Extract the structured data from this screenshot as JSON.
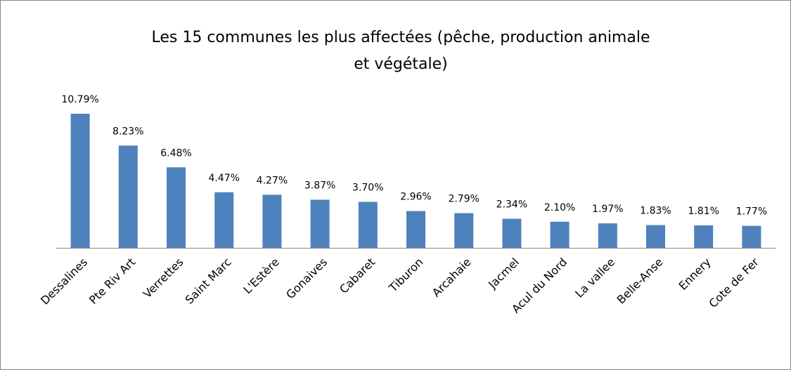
{
  "chart_data": {
    "type": "bar",
    "title": [
      "Les 15 communes les plus affectées (pêche, production  animale",
      "et végétale)"
    ],
    "categories": [
      "Dessalines",
      "Pte Riv Art",
      "Verrettes",
      "Saint Marc",
      "L'Estère",
      "Gonaives",
      "Cabaret",
      "Tiburon",
      "Arcahaie",
      "Jacmel",
      "Acul du Nord",
      "La vallee",
      "Belle-Anse",
      "Ennery",
      "Cote de Fer"
    ],
    "values": [
      10.79,
      8.23,
      6.48,
      4.47,
      4.27,
      3.87,
      3.7,
      2.96,
      2.79,
      2.34,
      2.1,
      1.97,
      1.83,
      1.81,
      1.77
    ],
    "value_labels": [
      "10.79%",
      "8.23%",
      "6.48%",
      "4.47%",
      "4.27%",
      "3.87%",
      "3.70%",
      "2.96%",
      "2.79%",
      "2.34%",
      "2.10%",
      "1.97%",
      "1.83%",
      "1.81%",
      "1.77%"
    ],
    "color": "#4f81bd"
  }
}
